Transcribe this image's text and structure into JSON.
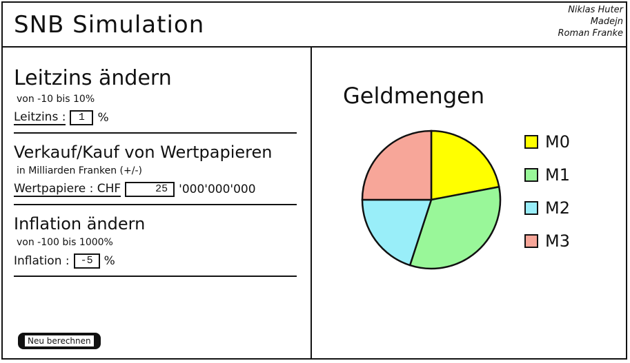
{
  "header": {
    "title": "SNB Simulation",
    "authors": [
      "Niklas Huter",
      "Madejn",
      "Roman Franke"
    ]
  },
  "controls": {
    "leitzins": {
      "heading": "Leitzins ändern",
      "range": "von -10 bis 10%",
      "label": "Leitzins :",
      "value": "1",
      "unit": "%"
    },
    "wertpapiere": {
      "heading": "Verkauf/Kauf von Wertpapieren",
      "range": "in Milliarden Franken (+/-)",
      "label": "Wertpapiere : CHF",
      "value": "25",
      "suffix": "'000'000'000"
    },
    "inflation": {
      "heading": "Inflation ändern",
      "range": "von -100 bis 1000%",
      "label": "Inflation :",
      "value": "-5",
      "unit": "%"
    },
    "calc_button": "Neu berechnen"
  },
  "chart_data": {
    "type": "pie",
    "title": "Geldmengen",
    "legend_position": "right",
    "slices": [
      {
        "label": "M0",
        "value": 22,
        "color": "#ffff00"
      },
      {
        "label": "M1",
        "value": 33,
        "color": "#99f799"
      },
      {
        "label": "M2",
        "value": 20,
        "color": "#99eef9"
      },
      {
        "label": "M3",
        "value": 25,
        "color": "#f7a699"
      }
    ]
  }
}
